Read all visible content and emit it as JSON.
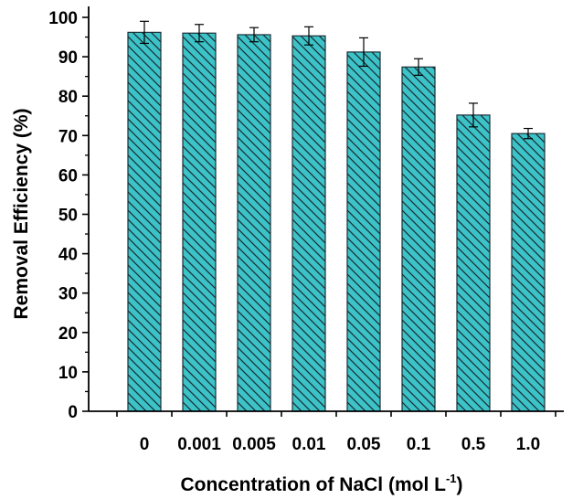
{
  "chart_data": {
    "type": "bar",
    "categories": [
      "0",
      "0.001",
      "0.005",
      "0.01",
      "0.05",
      "0.1",
      "0.5",
      "1.0"
    ],
    "values": [
      96.2,
      96.0,
      95.6,
      95.3,
      91.2,
      87.4,
      75.2,
      70.5
    ],
    "errors": [
      2.8,
      2.2,
      1.8,
      2.3,
      3.6,
      2.1,
      3.0,
      1.3
    ],
    "xlabel": "Concentration of NaCl (mol L",
    "xlabel_sup": "-1",
    "xlabel_end": ")",
    "ylabel": "Removal Efficiency (%)",
    "ylim": [
      0,
      100
    ],
    "yticks": [
      "0",
      "10",
      "20",
      "30",
      "40",
      "50",
      "60",
      "70",
      "80",
      "90",
      "100"
    ],
    "bar_color": "#3cc3c8",
    "hatch": "diagonal",
    "grid": false
  }
}
